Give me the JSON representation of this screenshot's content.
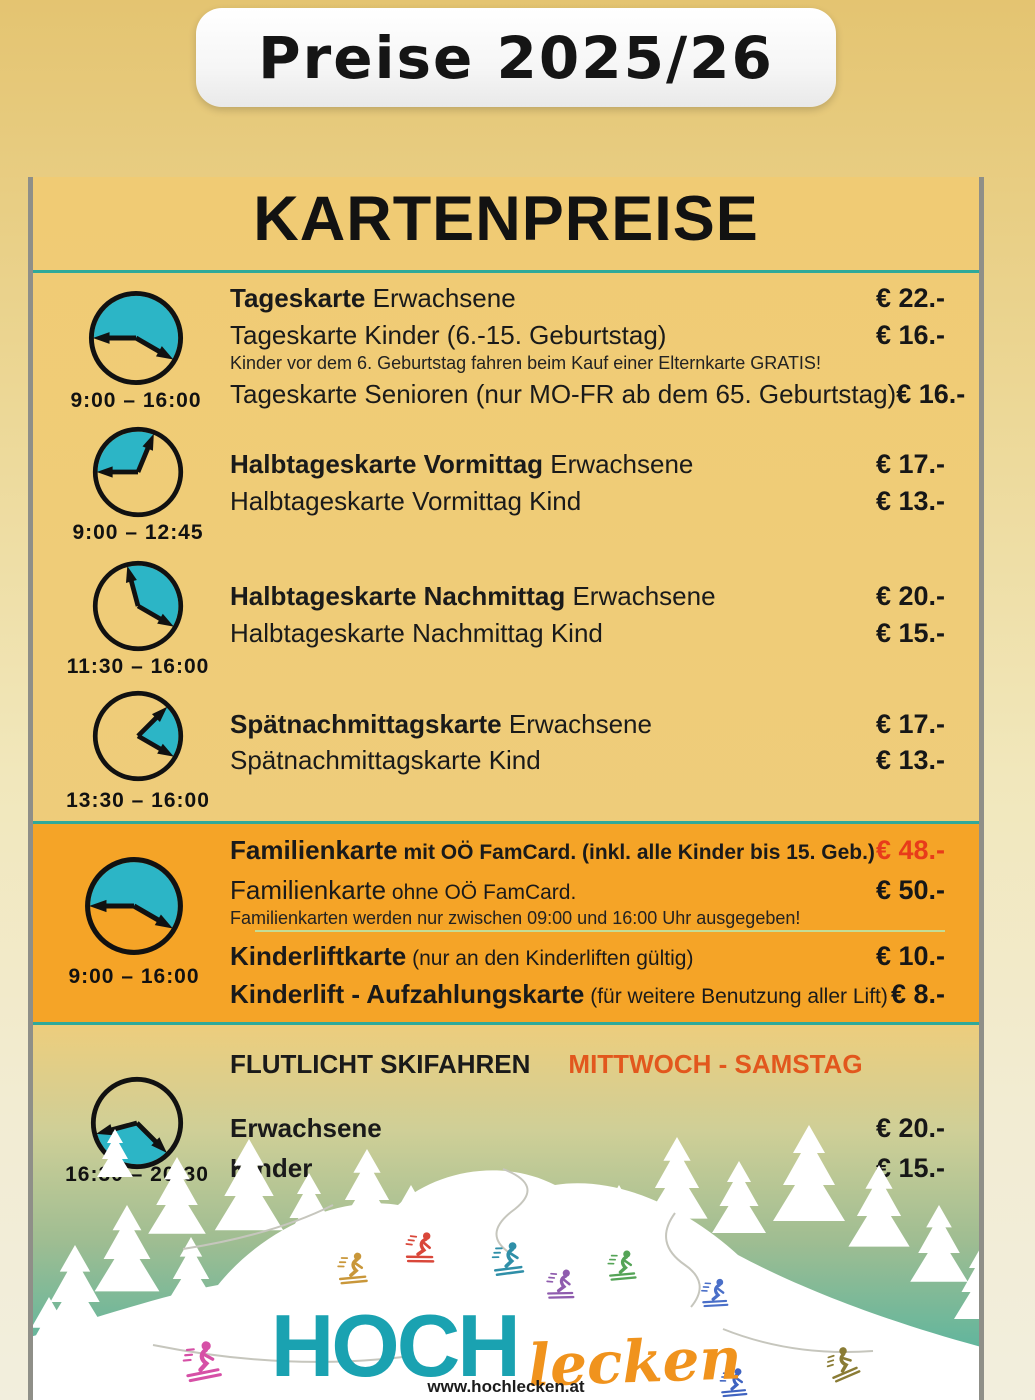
{
  "page": {
    "title": "Preise 2025/26",
    "heading": "KARTENPREISE",
    "website": "www.hochlecken.at"
  },
  "logo": {
    "part1": "HOCH",
    "part2": "lecken"
  },
  "colors": {
    "accent_teal": "#2fa99a",
    "clock_fill": "#2cb5c6",
    "orange_panel": "#f5a427",
    "highlight_price": "#e83b1a",
    "badge_orange": "#e2571d",
    "sep_light": "#c4dd96",
    "logo_teal": "#1aa2b1",
    "logo_orange": "#f0931d",
    "card_gold": "#f0cb74",
    "scene_teal": "#43b2a2"
  },
  "sections": [
    {
      "id": "tageskarte",
      "time": "9:00 – 16:00",
      "rows": [
        {
          "parts": [
            {
              "t": "Tageskarte",
              "s": "b"
            },
            {
              "t": " Erwachsene",
              "s": "r"
            }
          ],
          "price": "€ 22.-"
        },
        {
          "parts": [
            {
              "t": "Tageskarte Kinder (6.-15. Geburtstag)",
              "s": "r"
            }
          ],
          "price": "€ 16.-"
        },
        {
          "note": "Kinder vor dem 6. Geburtstag fahren beim Kauf einer Elternkarte GRATIS!"
        },
        {
          "parts": [
            {
              "t": "Tageskarte Senioren (nur MO-FR ab dem 65. Geburtstag)",
              "s": "r"
            }
          ],
          "price": "€ 16.-"
        }
      ]
    },
    {
      "id": "halbtageskarte-vormittag",
      "time": "9:00 – 12:45",
      "rows": [
        {
          "parts": [
            {
              "t": "Halbtageskarte Vormittag",
              "s": "b"
            },
            {
              "t": " Erwachsene",
              "s": "r"
            }
          ],
          "price": "€ 17.-"
        },
        {
          "parts": [
            {
              "t": "Halbtageskarte Vormittag Kind",
              "s": "r"
            }
          ],
          "price": "€ 13.-"
        }
      ]
    },
    {
      "id": "halbtageskarte-nachmittag",
      "time": "11:30 – 16:00",
      "rows": [
        {
          "parts": [
            {
              "t": "Halbtageskarte Nachmittag",
              "s": "b"
            },
            {
              "t": " Erwachsene",
              "s": "r"
            }
          ],
          "price": "€ 20.-"
        },
        {
          "parts": [
            {
              "t": "Halbtageskarte Nachmittag Kind",
              "s": "r"
            }
          ],
          "price": "€ 15.-"
        }
      ]
    },
    {
      "id": "spaetnachmittagskarte",
      "time": "13:30 – 16:00",
      "rows": [
        {
          "parts": [
            {
              "t": "Spätnachmittagskarte",
              "s": "b"
            },
            {
              "t": " Erwachsene",
              "s": "r"
            }
          ],
          "price": "€ 17.-"
        },
        {
          "parts": [
            {
              "t": "Spätnachmittagskarte Kind",
              "s": "r"
            }
          ],
          "price": "€ 13.-"
        }
      ]
    },
    {
      "id": "familienkarte",
      "time": "9:00 – 16:00",
      "highlighted_panel": true,
      "rows": [
        {
          "parts": [
            {
              "t": "Familienkarte",
              "s": "b"
            },
            {
              "t": " mit OÖ FamCard. (inkl. alle Kinder bis 15. Geb.)",
              "s": "bs"
            }
          ],
          "price": "€ 48.-",
          "price_highlight": true
        },
        {
          "parts": [
            {
              "t": "Familienkarte",
              "s": "r"
            },
            {
              "t": " ohne OÖ FamCard.",
              "s": "rs"
            }
          ],
          "price": "€ 50.-"
        },
        {
          "note": "Familienkarten werden nur zwischen 09:00 und 16:00 Uhr ausgegeben!"
        },
        {
          "separator": true
        },
        {
          "parts": [
            {
              "t": "Kinderliftkarte",
              "s": "b"
            },
            {
              "t": " (nur an den Kinderliften gültig)",
              "s": "rs"
            }
          ],
          "price": "€ 10.-"
        },
        {
          "parts": [
            {
              "t": "Kinderlift - Aufzahlungskarte",
              "s": "b"
            },
            {
              "t": " (für weitere Benutzung aller Lift)",
              "s": "rs"
            }
          ],
          "price": "€ 8.-"
        }
      ]
    },
    {
      "id": "flutlicht-skifahren",
      "time": "16:30 – 20:30",
      "rows": [
        {
          "parts": [
            {
              "t": "FLUTLICHT SKIFAHREN",
              "s": "b"
            },
            {
              "t": "MITTWOCH - SAMSTAG",
              "s": "badge"
            }
          ]
        },
        {
          "parts": [
            {
              "t": "Erwachsene",
              "s": "b"
            }
          ],
          "price": "€ 20.-"
        },
        {
          "parts": [
            {
              "t": "Kinder",
              "s": "b"
            }
          ],
          "price": "€ 15.-"
        }
      ]
    }
  ],
  "scene": {
    "skier_colors": [
      "#c9973a",
      "#d9473a",
      "#2f8fa8",
      "#8f5cae",
      "#55a457",
      "#4a6fc8",
      "#d650a6",
      "#3f63c0",
      "#8a7c35"
    ],
    "track_color": "#c6c6bd"
  }
}
